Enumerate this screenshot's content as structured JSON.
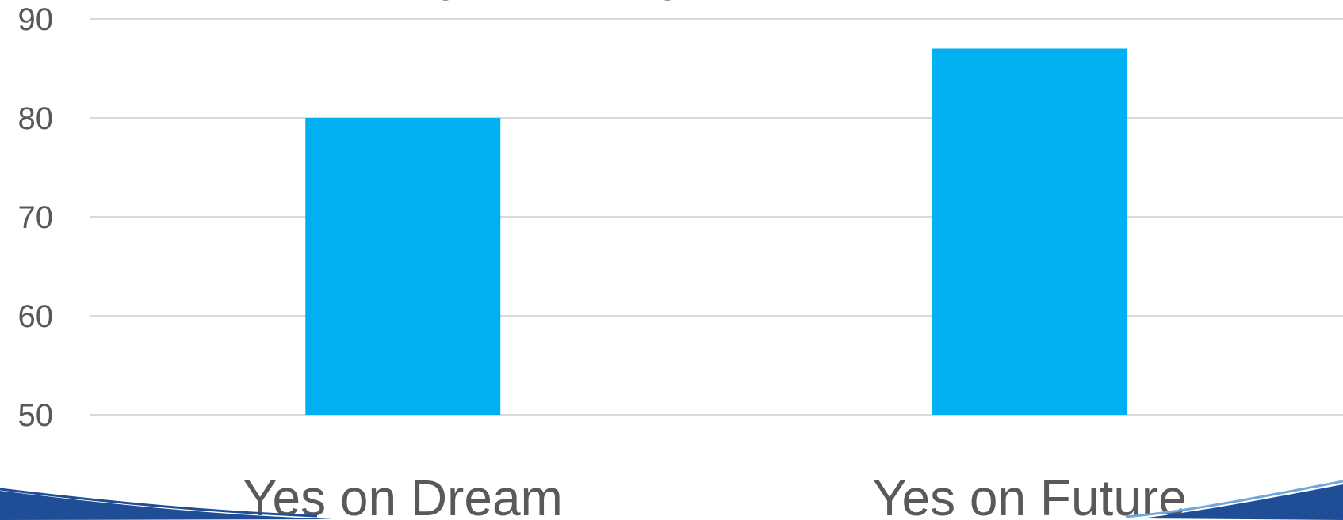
{
  "chart_data": {
    "type": "bar",
    "title": "",
    "xlabel": "",
    "ylabel": "",
    "categories": [
      "Yes on Dream",
      "Yes on Future"
    ],
    "values": [
      80,
      87
    ],
    "ylim": [
      50,
      90
    ],
    "yticks": [
      50,
      60,
      70,
      80,
      90
    ],
    "grid": true,
    "legend": "none",
    "bar_color": "#00b0f0"
  },
  "colors": {
    "gridline": "#d9d9d9",
    "tick_text": "#595959",
    "bar": "#00b0f0",
    "swoosh_dark": "#1f4e96",
    "swoosh_light": "#6fa8dc"
  }
}
